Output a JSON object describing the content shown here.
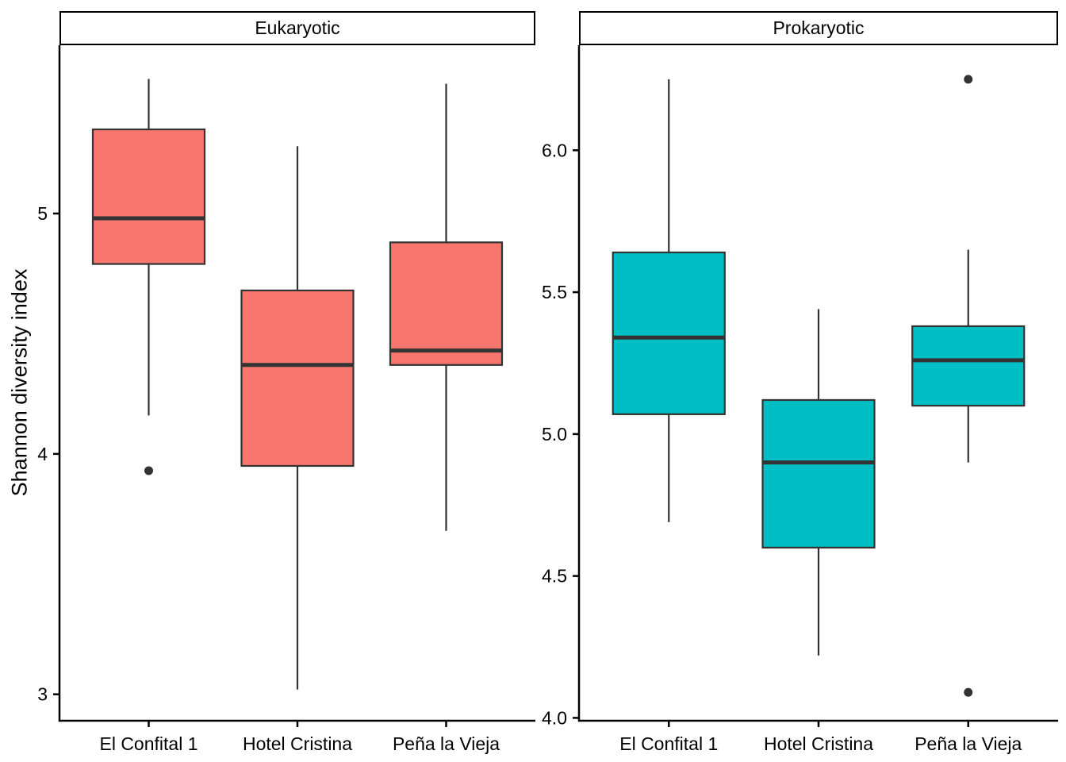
{
  "chart_data": {
    "type": "boxplot",
    "title": "",
    "xlabel": "",
    "ylabel": "Shannon diversity index",
    "categories": [
      "El Confital 1",
      "Hotel Cristina",
      "Peña la Vieja"
    ],
    "legend": "none",
    "grid": false,
    "stroke_color": "#333333",
    "outlier_color": "#333333",
    "panels": [
      {
        "facet": "Eukaryotic",
        "fill": "#F8766D",
        "ylim": [
          2.89,
          5.7
        ],
        "yticks": [
          {
            "value": 3,
            "label": "3"
          },
          {
            "value": 4,
            "label": "4"
          },
          {
            "value": 5,
            "label": "5"
          }
        ],
        "boxes": [
          {
            "category": "El Confital 1",
            "lower_whisker": 4.16,
            "q1": 4.79,
            "median": 4.98,
            "q3": 5.35,
            "upper_whisker": 5.56,
            "outliers": [
              3.93
            ]
          },
          {
            "category": "Hotel Cristina",
            "lower_whisker": 3.02,
            "q1": 3.95,
            "median": 4.37,
            "q3": 4.68,
            "upper_whisker": 5.28,
            "outliers": []
          },
          {
            "category": "Peña la Vieja",
            "lower_whisker": 3.68,
            "q1": 4.37,
            "median": 4.43,
            "q3": 4.88,
            "upper_whisker": 5.54,
            "outliers": []
          }
        ]
      },
      {
        "facet": "Prokaryotic",
        "fill": "#00BFC4",
        "ylim": [
          3.99,
          6.37
        ],
        "yticks": [
          {
            "value": 4.0,
            "label": "4.0"
          },
          {
            "value": 4.5,
            "label": "4.5"
          },
          {
            "value": 5.0,
            "label": "5.0"
          },
          {
            "value": 5.5,
            "label": "5.5"
          },
          {
            "value": 6.0,
            "label": "6.0"
          }
        ],
        "boxes": [
          {
            "category": "El Confital 1",
            "lower_whisker": 4.69,
            "q1": 5.07,
            "median": 5.34,
            "q3": 5.64,
            "upper_whisker": 6.25,
            "outliers": []
          },
          {
            "category": "Hotel Cristina",
            "lower_whisker": 4.22,
            "q1": 4.6,
            "median": 4.9,
            "q3": 5.12,
            "upper_whisker": 5.44,
            "outliers": []
          },
          {
            "category": "Peña la Vieja",
            "lower_whisker": 4.9,
            "q1": 5.1,
            "median": 5.26,
            "q3": 5.38,
            "upper_whisker": 5.65,
            "outliers": [
              6.25,
              4.09
            ]
          }
        ]
      }
    ]
  }
}
